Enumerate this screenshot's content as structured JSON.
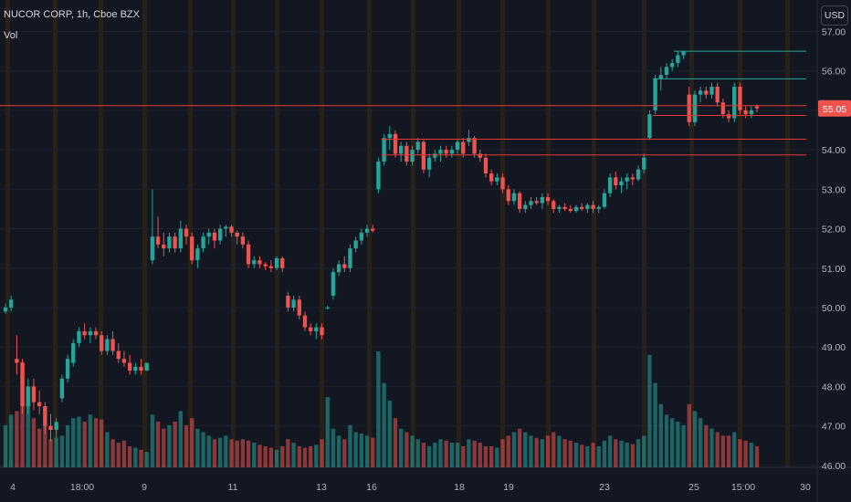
{
  "legend": {
    "symbol": "NUCOR CORP, 1h, Cboe BZX",
    "indicator": "Vol"
  },
  "currency_label": "USD",
  "colors": {
    "background": "#131722",
    "up": "#26a69a",
    "down": "#ef5350",
    "grid": "#1e222d",
    "session_band": "#2a2418",
    "hline_red": "#e53935",
    "hline_teal": "#26a69a"
  },
  "chart_data": {
    "type": "candlestick",
    "title": "NUCOR CORP, 1h, Cboe BZX",
    "y_axis": {
      "ticks": [
        "46.00",
        "47.00",
        "48.00",
        "49.00",
        "50.00",
        "51.00",
        "52.00",
        "53.00",
        "54.00",
        "55.00",
        "56.00",
        "57.00"
      ],
      "range": [
        45.95,
        57.15
      ]
    },
    "x_axis": {
      "ticks": [
        "4",
        "18:00",
        "9",
        "11",
        "13",
        "16",
        "18",
        "19",
        "23",
        "25",
        "15:00",
        "30"
      ]
    },
    "current_price": "55.05",
    "horizontal_lines": [
      {
        "price": 56.5,
        "color": "teal"
      },
      {
        "price": 55.8,
        "color": "teal"
      },
      {
        "price": 55.12,
        "color": "red"
      },
      {
        "price": 54.87,
        "color": "red"
      },
      {
        "price": 54.27,
        "color": "red"
      },
      {
        "price": 53.87,
        "color": "red"
      }
    ],
    "candles": [
      [
        49.9,
        50.1,
        49.85,
        50.0,
        60
      ],
      [
        50.0,
        50.3,
        49.9,
        50.2,
        75
      ],
      [
        48.7,
        49.3,
        48.3,
        48.6,
        80
      ],
      [
        48.6,
        48.7,
        47.3,
        47.5,
        150
      ],
      [
        47.5,
        48.2,
        47.3,
        48.0,
        110
      ],
      [
        48.0,
        48.2,
        47.4,
        47.6,
        70
      ],
      [
        47.6,
        47.9,
        47.3,
        47.5,
        55
      ],
      [
        47.5,
        47.6,
        46.8,
        47.0,
        60
      ],
      [
        47.0,
        47.3,
        46.6,
        46.9,
        40
      ],
      [
        46.9,
        47.2,
        46.7,
        47.1,
        42
      ],
      [
        47.7,
        48.3,
        47.6,
        48.2,
        45
      ],
      [
        48.2,
        48.8,
        48.1,
        48.7,
        60
      ],
      [
        48.6,
        49.2,
        48.5,
        49.1,
        70
      ],
      [
        49.1,
        49.5,
        49.0,
        49.4,
        72
      ],
      [
        49.4,
        49.6,
        49.2,
        49.3,
        65
      ],
      [
        49.3,
        49.5,
        49.1,
        49.4,
        75
      ],
      [
        49.4,
        49.5,
        49.2,
        49.3,
        70
      ],
      [
        49.3,
        49.4,
        48.8,
        48.9,
        68
      ],
      [
        48.9,
        49.3,
        48.8,
        49.2,
        50
      ],
      [
        49.2,
        49.4,
        48.8,
        48.9,
        40
      ],
      [
        48.9,
        49.1,
        48.6,
        48.7,
        35
      ],
      [
        48.7,
        48.9,
        48.5,
        48.6,
        38
      ],
      [
        48.6,
        48.8,
        48.3,
        48.4,
        30
      ],
      [
        48.4,
        48.6,
        48.3,
        48.5,
        28
      ],
      [
        48.5,
        48.7,
        48.3,
        48.4,
        25
      ],
      [
        48.4,
        48.6,
        48.4,
        48.6,
        22
      ],
      [
        51.2,
        53.0,
        51.1,
        51.8,
        75
      ],
      [
        51.8,
        52.3,
        51.5,
        51.6,
        65
      ],
      [
        51.6,
        51.9,
        51.3,
        51.5,
        55
      ],
      [
        51.5,
        51.9,
        51.4,
        51.8,
        60
      ],
      [
        51.8,
        51.9,
        51.4,
        51.5,
        65
      ],
      [
        51.5,
        52.2,
        51.4,
        52.0,
        80
      ],
      [
        52.0,
        52.1,
        51.6,
        51.8,
        60
      ],
      [
        51.8,
        51.9,
        51.1,
        51.2,
        70
      ],
      [
        51.2,
        51.6,
        51.0,
        51.5,
        55
      ],
      [
        51.5,
        51.9,
        51.4,
        51.8,
        50
      ],
      [
        51.8,
        52.0,
        51.6,
        51.9,
        45
      ],
      [
        51.9,
        52.0,
        51.5,
        51.7,
        40
      ],
      [
        51.7,
        52.1,
        51.6,
        52.0,
        42
      ],
      [
        52.0,
        52.1,
        51.8,
        52.05,
        45
      ],
      [
        52.05,
        52.1,
        51.8,
        51.9,
        40
      ],
      [
        51.9,
        51.95,
        51.6,
        51.8,
        38
      ],
      [
        51.8,
        51.9,
        51.5,
        51.6,
        40
      ],
      [
        51.6,
        51.7,
        51.0,
        51.1,
        38
      ],
      [
        51.1,
        51.3,
        51.0,
        51.2,
        35
      ],
      [
        51.2,
        51.3,
        51.0,
        51.1,
        32
      ],
      [
        51.1,
        51.15,
        50.95,
        51.05,
        30
      ],
      [
        51.05,
        51.2,
        50.9,
        51.0,
        28
      ],
      [
        51.0,
        51.3,
        50.95,
        51.25,
        25
      ],
      [
        51.25,
        51.3,
        50.9,
        51.0,
        30
      ],
      [
        50.3,
        50.4,
        49.9,
        50.0,
        40
      ],
      [
        50.0,
        50.3,
        49.9,
        50.2,
        35
      ],
      [
        50.2,
        50.3,
        49.7,
        49.8,
        30
      ],
      [
        49.8,
        49.9,
        49.4,
        49.5,
        28
      ],
      [
        49.5,
        49.6,
        49.3,
        49.4,
        30
      ],
      [
        49.4,
        49.6,
        49.2,
        49.5,
        32
      ],
      [
        49.5,
        49.6,
        49.2,
        49.3,
        40
      ],
      [
        50.0,
        50.05,
        49.95,
        50.0,
        100
      ],
      [
        50.3,
        51.0,
        50.2,
        50.9,
        55
      ],
      [
        50.9,
        51.2,
        50.8,
        51.1,
        45
      ],
      [
        51.1,
        51.3,
        50.9,
        51.0,
        40
      ],
      [
        51.0,
        51.6,
        50.9,
        51.5,
        60
      ],
      [
        51.5,
        51.8,
        51.4,
        51.7,
        50
      ],
      [
        51.7,
        52.0,
        51.6,
        51.9,
        48
      ],
      [
        51.9,
        52.1,
        51.8,
        52.0,
        45
      ],
      [
        52.0,
        52.1,
        51.9,
        51.95,
        42
      ],
      [
        53.0,
        53.8,
        52.9,
        53.7,
        165
      ],
      [
        53.7,
        54.4,
        53.6,
        54.3,
        120
      ],
      [
        54.3,
        54.6,
        54.0,
        54.4,
        95
      ],
      [
        54.4,
        54.5,
        53.8,
        53.9,
        70
      ],
      [
        53.9,
        54.2,
        53.7,
        54.1,
        55
      ],
      [
        54.1,
        54.2,
        53.6,
        53.7,
        50
      ],
      [
        53.7,
        54.1,
        53.6,
        54.0,
        45
      ],
      [
        54.0,
        54.3,
        53.9,
        54.2,
        40
      ],
      [
        54.2,
        54.25,
        53.4,
        53.5,
        35
      ],
      [
        53.5,
        53.9,
        53.3,
        53.8,
        30
      ],
      [
        53.8,
        54.0,
        53.7,
        53.9,
        35
      ],
      [
        53.9,
        54.1,
        53.7,
        54.0,
        40
      ],
      [
        54.0,
        54.1,
        53.8,
        53.9,
        38
      ],
      [
        53.9,
        54.1,
        53.8,
        54.0,
        35
      ],
      [
        54.0,
        54.25,
        53.9,
        54.2,
        35
      ],
      [
        54.2,
        54.3,
        53.8,
        53.9,
        30
      ],
      [
        54.2,
        54.5,
        54.1,
        54.3,
        40
      ],
      [
        54.3,
        54.35,
        53.8,
        53.9,
        38
      ],
      [
        53.9,
        54.0,
        53.7,
        53.8,
        35
      ],
      [
        53.8,
        53.9,
        53.3,
        53.4,
        30
      ],
      [
        53.4,
        53.5,
        53.1,
        53.2,
        30
      ],
      [
        53.2,
        53.4,
        53.1,
        53.3,
        28
      ],
      [
        53.3,
        53.4,
        52.9,
        53.0,
        40
      ],
      [
        53.0,
        53.1,
        52.6,
        52.7,
        45
      ],
      [
        52.7,
        53.0,
        52.6,
        52.9,
        50
      ],
      [
        52.9,
        52.95,
        52.4,
        52.5,
        55
      ],
      [
        52.5,
        52.7,
        52.4,
        52.6,
        50
      ],
      [
        52.6,
        52.8,
        52.5,
        52.7,
        45
      ],
      [
        52.7,
        52.8,
        52.6,
        52.65,
        42
      ],
      [
        52.65,
        52.9,
        52.5,
        52.8,
        40
      ],
      [
        52.8,
        52.9,
        52.6,
        52.7,
        45
      ],
      [
        52.7,
        52.75,
        52.4,
        52.5,
        50
      ],
      [
        52.5,
        52.6,
        52.4,
        52.55,
        45
      ],
      [
        52.55,
        52.65,
        52.45,
        52.5,
        40
      ],
      [
        52.5,
        52.6,
        52.4,
        52.45,
        38
      ],
      [
        52.45,
        52.6,
        52.4,
        52.55,
        35
      ],
      [
        52.55,
        52.65,
        52.45,
        52.5,
        32
      ],
      [
        52.5,
        52.65,
        52.4,
        52.6,
        30
      ],
      [
        52.6,
        52.7,
        52.4,
        52.5,
        35
      ],
      [
        52.5,
        52.6,
        52.4,
        52.55,
        30
      ],
      [
        52.55,
        53.0,
        52.5,
        52.9,
        38
      ],
      [
        52.9,
        53.4,
        52.8,
        53.3,
        45
      ],
      [
        53.3,
        53.45,
        53.0,
        53.1,
        40
      ],
      [
        53.1,
        53.3,
        52.9,
        53.2,
        38
      ],
      [
        53.2,
        53.4,
        53.0,
        53.3,
        35
      ],
      [
        53.3,
        53.4,
        53.1,
        53.25,
        33
      ],
      [
        53.25,
        53.6,
        53.2,
        53.5,
        40
      ],
      [
        53.5,
        53.9,
        53.4,
        53.8,
        45
      ],
      [
        54.3,
        55.0,
        54.25,
        54.9,
        160
      ],
      [
        55.0,
        55.9,
        54.9,
        55.8,
        120
      ],
      [
        55.8,
        56.1,
        55.5,
        55.9,
        90
      ],
      [
        55.9,
        56.2,
        55.8,
        56.1,
        75
      ],
      [
        56.1,
        56.3,
        56.0,
        56.2,
        70
      ],
      [
        56.2,
        56.5,
        56.1,
        56.4,
        65
      ],
      [
        56.4,
        56.5,
        56.3,
        56.5,
        60
      ],
      [
        55.4,
        55.6,
        54.6,
        54.7,
        90
      ],
      [
        54.7,
        55.5,
        54.6,
        55.4,
        80
      ],
      [
        55.4,
        55.6,
        55.2,
        55.5,
        70
      ],
      [
        55.5,
        55.6,
        55.3,
        55.4,
        60
      ],
      [
        55.4,
        55.7,
        55.3,
        55.6,
        55
      ],
      [
        55.6,
        55.7,
        55.1,
        55.2,
        50
      ],
      [
        55.2,
        55.3,
        54.8,
        54.9,
        45
      ],
      [
        54.9,
        55.0,
        54.7,
        54.8,
        45
      ],
      [
        54.8,
        55.7,
        54.7,
        55.6,
        50
      ],
      [
        55.6,
        55.7,
        54.9,
        55.0,
        40
      ],
      [
        55.0,
        55.1,
        54.8,
        54.9,
        38
      ],
      [
        54.9,
        55.1,
        54.8,
        55.0,
        35
      ],
      [
        55.1,
        55.15,
        54.95,
        55.05,
        30
      ]
    ]
  }
}
